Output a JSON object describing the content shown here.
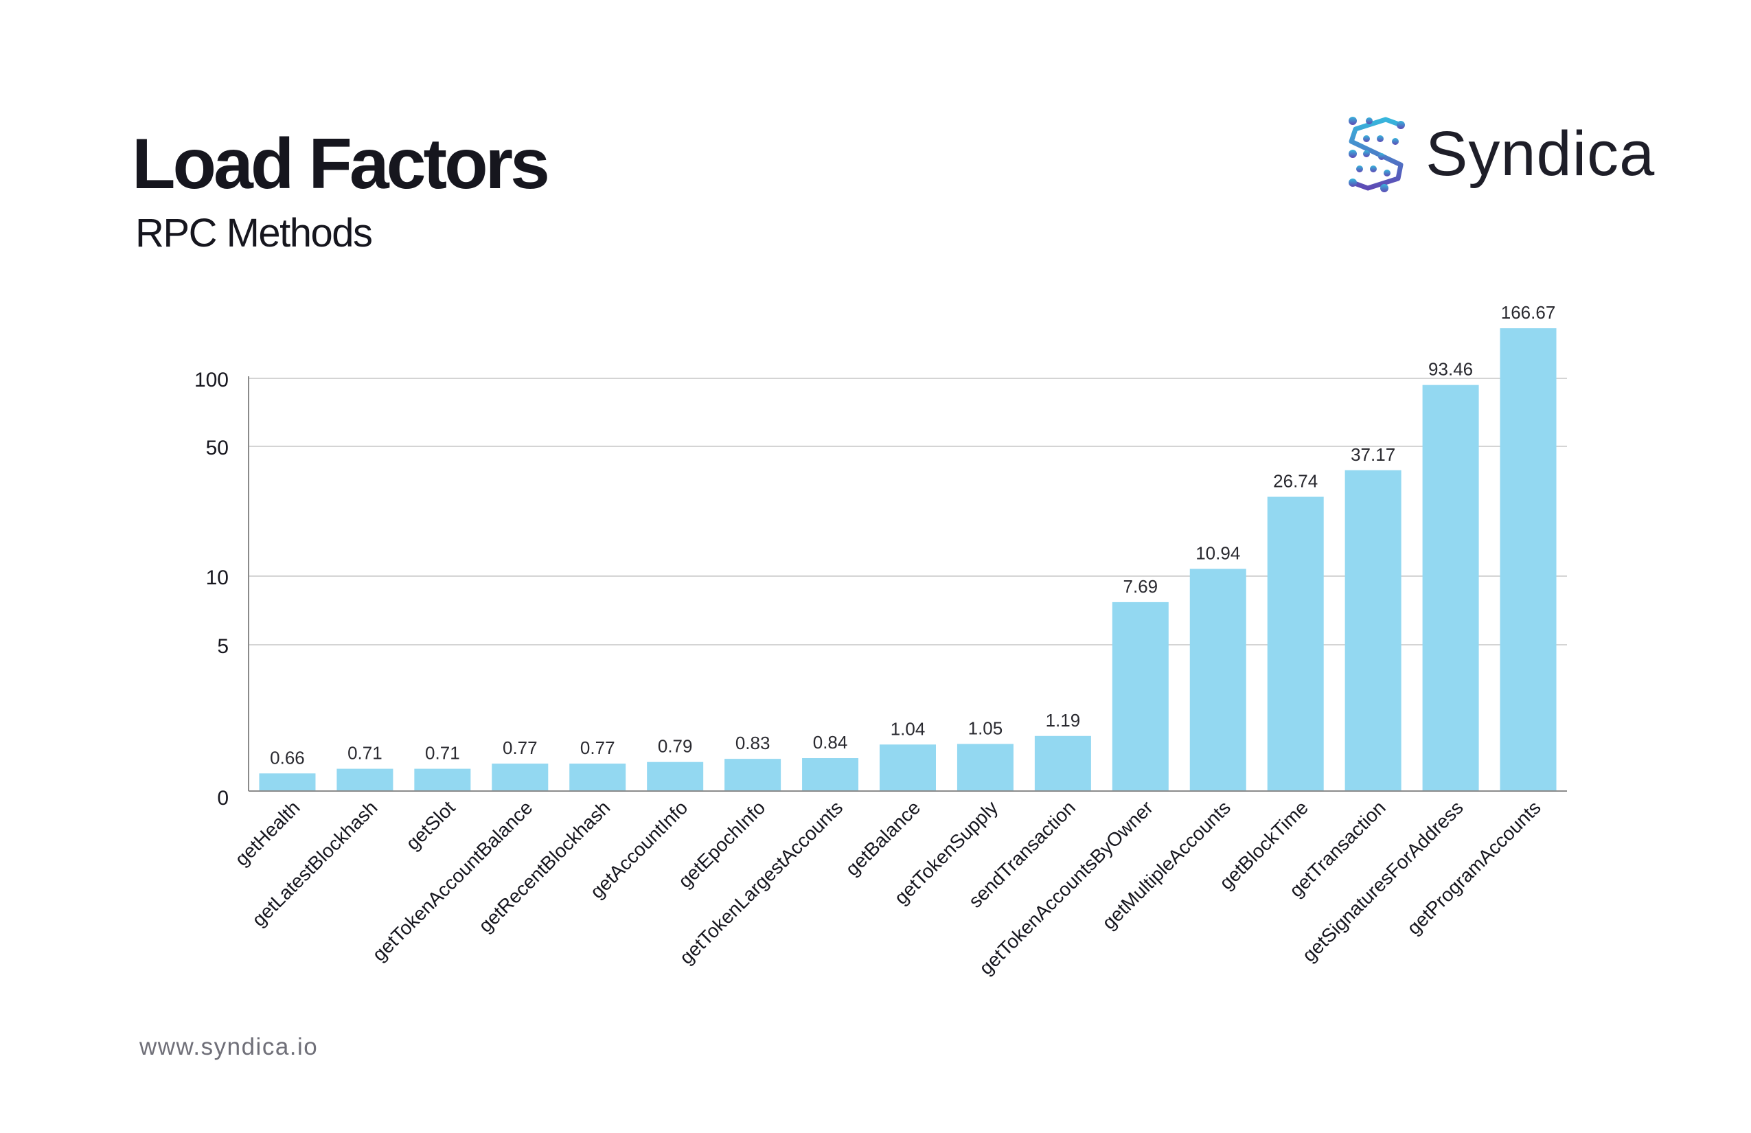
{
  "header": {
    "title": "Load Factors",
    "subtitle": "RPC Methods"
  },
  "brand": {
    "name": "Syndica",
    "logo_icon": "syndica-logo-icon"
  },
  "footer": {
    "url": "www.syndica.io"
  },
  "colors": {
    "bar": "#93d8f1",
    "grid": "#d4d4d4",
    "axis": "#8a8a8a",
    "text": "#16161e",
    "logo_gradient_start": "#37b6dc",
    "logo_gradient_end": "#5e4ab5"
  },
  "chart_data": {
    "type": "bar",
    "title": "Load Factors",
    "subtitle": "RPC Methods",
    "xlabel": "",
    "ylabel": "",
    "y_scale": "log",
    "yticks": [
      0,
      5,
      10,
      50,
      100
    ],
    "grid": true,
    "legend": "none",
    "categories": [
      "getHealth",
      "getLatestBlockhash",
      "getSlot",
      "getTokenAccountBalance",
      "getRecentBlockhash",
      "getAccountInfo",
      "getEpochInfo",
      "getTokenLargestAccounts",
      "getBalance",
      "getTokenSupply",
      "sendTransaction",
      "getTokenAccountsByOwner",
      "getMultipleAccounts",
      "getBlockTime",
      "getTransaction",
      "getSignaturesForAddress",
      "getProgramAccounts"
    ],
    "values": [
      0.66,
      0.71,
      0.71,
      0.77,
      0.77,
      0.79,
      0.83,
      0.84,
      1.04,
      1.05,
      1.19,
      7.69,
      10.94,
      26.74,
      37.17,
      93.46,
      166.67
    ],
    "labels": [
      "0.66",
      "0.71",
      "0.71",
      "0.77",
      "0.77",
      "0.79",
      "0.83",
      "0.84",
      "1.04",
      "1.05",
      "1.19",
      "7.69",
      "10.94",
      "26.74",
      "37.17",
      "93.46",
      "166.67"
    ]
  }
}
